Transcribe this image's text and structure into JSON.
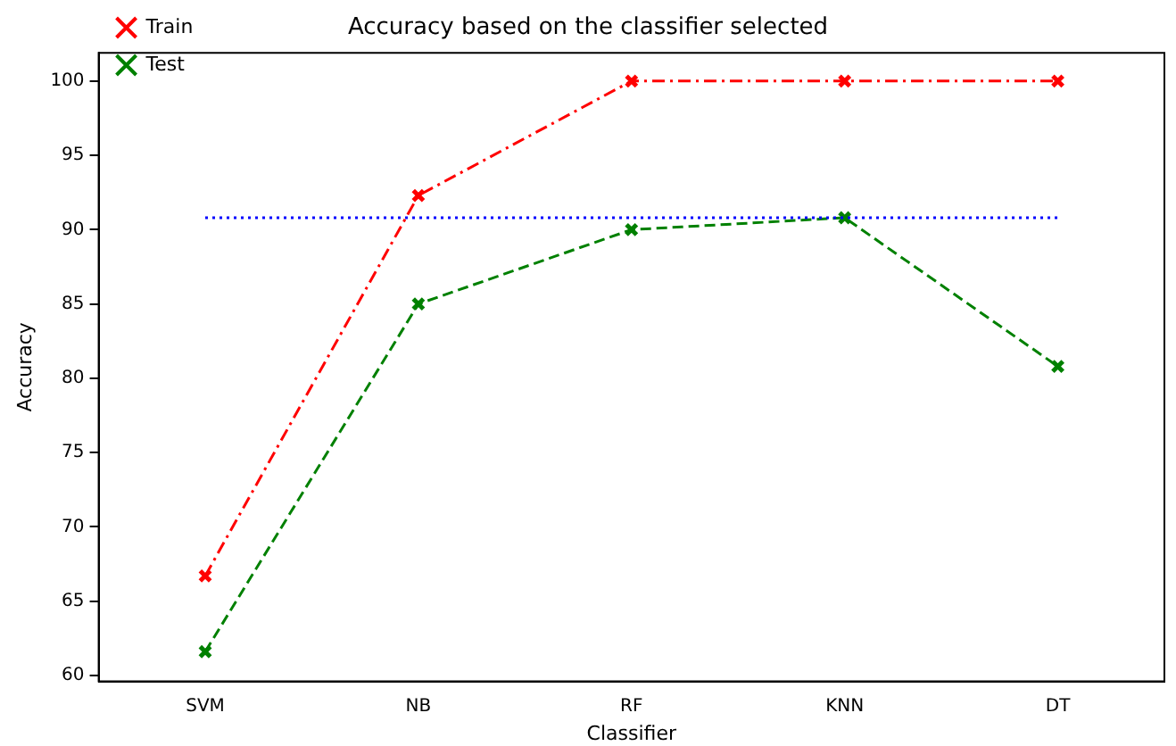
{
  "chart_data": {
    "type": "line",
    "title": "Accuracy based on the classifier selected",
    "xlabel": "Classifier",
    "ylabel": "Accuracy",
    "categories": [
      "SVM",
      "NB",
      "RF",
      "KNN",
      "DT"
    ],
    "series": [
      {
        "name": "Train",
        "color": "#ff0000",
        "line_style": "dashdot",
        "values": [
          66.7,
          92.3,
          100,
          100,
          100
        ]
      },
      {
        "name": "Test",
        "color": "#008000",
        "line_style": "dashed",
        "values": [
          61.6,
          85,
          90,
          90.8,
          80.8
        ]
      }
    ],
    "ref_lines": [
      {
        "axis": "y",
        "value": 90.8,
        "color": "#0000ff",
        "line_style": "dotted"
      }
    ],
    "ylim": [
      59.6,
      101.9
    ],
    "yticks": [
      60,
      65,
      70,
      75,
      80,
      85,
      90,
      95,
      100
    ],
    "marker": "cross",
    "legend": "top left",
    "grid": false
  }
}
